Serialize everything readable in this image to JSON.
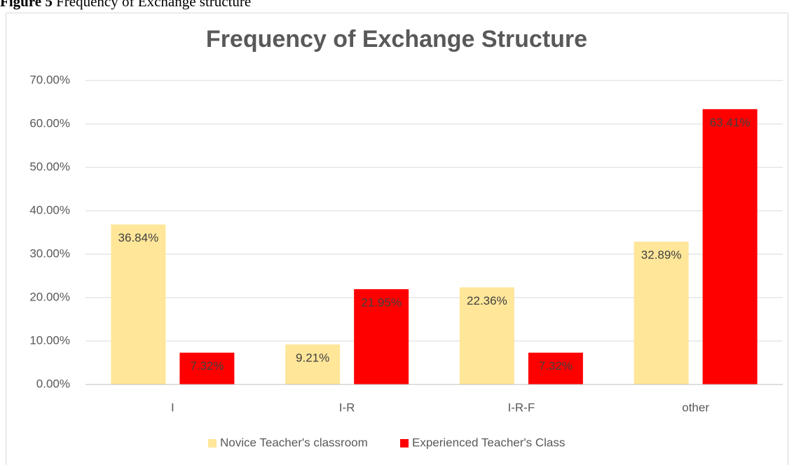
{
  "caption": {
    "label": "Figure 5",
    "text": "Frequency of Exchange structure"
  },
  "chart_data": {
    "type": "bar",
    "title": "Frequency of Exchange Structure",
    "categories": [
      "I",
      "I-R",
      "I-R-F",
      "other"
    ],
    "series": [
      {
        "name": "Novice Teacher's classroom",
        "color": "#ffe699",
        "values": [
          36.84,
          9.21,
          22.36,
          32.89
        ],
        "value_labels": [
          "36.84%",
          "9.21%",
          "22.36%",
          "32.89%"
        ]
      },
      {
        "name": "Experienced Teacher's Class",
        "color": "#ff0000",
        "values": [
          7.32,
          21.95,
          7.32,
          63.41
        ],
        "value_labels": [
          "7.32%",
          "21.95%",
          "7.32%",
          "63.41%"
        ]
      }
    ],
    "ylim": [
      0,
      70
    ],
    "yticks": [
      {
        "value": 0,
        "label": "0.00%"
      },
      {
        "value": 10,
        "label": "10.00%"
      },
      {
        "value": 20,
        "label": "20.00%"
      },
      {
        "value": 30,
        "label": "30.00%"
      },
      {
        "value": 40,
        "label": "40.00%"
      },
      {
        "value": 50,
        "label": "50.00%"
      },
      {
        "value": 60,
        "label": "60.00%"
      },
      {
        "value": 70,
        "label": "70.00%"
      }
    ],
    "grid": true,
    "legend": "bottom"
  }
}
